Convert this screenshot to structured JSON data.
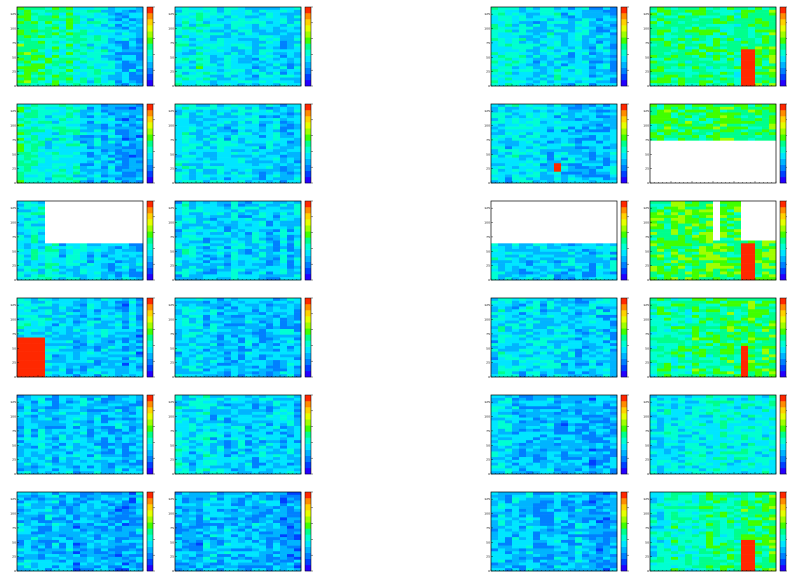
{
  "page": {
    "background": "#ffffff"
  },
  "colors": {
    "palette": [
      "#2400ff",
      "#0040ff",
      "#0080ff",
      "#00b4ff",
      "#00e6ff",
      "#00ffd2",
      "#00ff8c",
      "#40ff00",
      "#a0ff00",
      "#e6ff00",
      "#ffd200",
      "#ff8c00",
      "#ff2800"
    ],
    "empty": "#ffffff",
    "frame": "#000000"
  },
  "chart_data": {
    "type": "heatmap",
    "layout": {
      "rows": 6,
      "column_groups": 4
    },
    "y_ticks": [
      "0",
      "25",
      "50",
      "75",
      "100",
      "125"
    ],
    "x_ticks": [],
    "color_scale": "rainbow",
    "panels": [
      {
        "row": 0,
        "col": 0,
        "base": 0.62,
        "trend": -0.35,
        "hot": [],
        "empty": []
      },
      {
        "row": 0,
        "col": 1,
        "base": 0.47,
        "trend": -0.15,
        "hot": [
          [
            0.81,
            0.0,
            0.86,
            0.12
          ]
        ],
        "empty": []
      },
      {
        "row": 0,
        "col": 2,
        "base": 0.42,
        "trend": -0.1,
        "hot": [],
        "empty": []
      },
      {
        "row": 0,
        "col": 3,
        "base": 0.5,
        "trend": 0.05,
        "hot": [
          [
            0.74,
            0.55,
            0.81,
            1.0
          ]
        ],
        "empty": []
      },
      {
        "row": 1,
        "col": 0,
        "base": 0.5,
        "trend": -0.25,
        "hot": [],
        "empty": []
      },
      {
        "row": 1,
        "col": 1,
        "base": 0.4,
        "trend": -0.1,
        "hot": [
          [
            0.7,
            0.88,
            0.75,
            1.0
          ]
        ],
        "empty": []
      },
      {
        "row": 1,
        "col": 2,
        "base": 0.38,
        "trend": -0.05,
        "hot": [
          [
            0.5,
            0.75,
            0.55,
            0.85
          ]
        ],
        "empty": []
      },
      {
        "row": 1,
        "col": 3,
        "base": 0.55,
        "trend": 0.05,
        "hot": [],
        "empty": [
          [
            0.0,
            0.48,
            1.0,
            1.0
          ]
        ]
      },
      {
        "row": 2,
        "col": 0,
        "base": 0.42,
        "trend": -0.1,
        "hot": [],
        "empty": [
          [
            0.24,
            0.0,
            1.0,
            0.52
          ]
        ]
      },
      {
        "row": 2,
        "col": 1,
        "base": 0.38,
        "trend": -0.05,
        "hot": [],
        "empty": []
      },
      {
        "row": 2,
        "col": 2,
        "base": 0.36,
        "trend": -0.05,
        "hot": [],
        "empty": [
          [
            0.0,
            0.0,
            1.0,
            0.52
          ]
        ]
      },
      {
        "row": 2,
        "col": 3,
        "base": 0.58,
        "trend": 0.05,
        "hot": [
          [
            0.74,
            0.55,
            0.81,
            1.0
          ]
        ],
        "empty": [
          [
            0.48,
            0.0,
            0.55,
            0.5
          ],
          [
            0.75,
            0.0,
            1.0,
            0.5
          ]
        ]
      },
      {
        "row": 3,
        "col": 0,
        "base": 0.4,
        "trend": -0.1,
        "hot": [
          [
            0.0,
            0.5,
            0.24,
            1.0
          ]
        ],
        "empty": []
      },
      {
        "row": 3,
        "col": 1,
        "base": 0.36,
        "trend": -0.05,
        "hot": [],
        "empty": []
      },
      {
        "row": 3,
        "col": 2,
        "base": 0.37,
        "trend": -0.05,
        "hot": [],
        "empty": []
      },
      {
        "row": 3,
        "col": 3,
        "base": 0.5,
        "trend": 0.1,
        "hot": [
          [
            0.74,
            0.6,
            0.79,
            1.0
          ]
        ],
        "empty": []
      },
      {
        "row": 4,
        "col": 0,
        "base": 0.33,
        "trend": -0.05,
        "hot": [],
        "empty": []
      },
      {
        "row": 4,
        "col": 1,
        "base": 0.38,
        "trend": -0.05,
        "hot": [],
        "empty": []
      },
      {
        "row": 4,
        "col": 2,
        "base": 0.33,
        "trend": -0.05,
        "hot": [],
        "empty": []
      },
      {
        "row": 4,
        "col": 3,
        "base": 0.38,
        "trend": 0.05,
        "hot": [],
        "empty": []
      },
      {
        "row": 5,
        "col": 0,
        "base": 0.32,
        "trend": -0.05,
        "hot": [],
        "empty": []
      },
      {
        "row": 5,
        "col": 1,
        "base": 0.32,
        "trend": -0.05,
        "hot": [],
        "empty": []
      },
      {
        "row": 5,
        "col": 2,
        "base": 0.33,
        "trend": -0.05,
        "hot": [],
        "empty": []
      },
      {
        "row": 5,
        "col": 3,
        "base": 0.45,
        "trend": 0.15,
        "hot": [
          [
            0.74,
            0.6,
            0.81,
            1.0
          ]
        ],
        "empty": []
      }
    ]
  }
}
